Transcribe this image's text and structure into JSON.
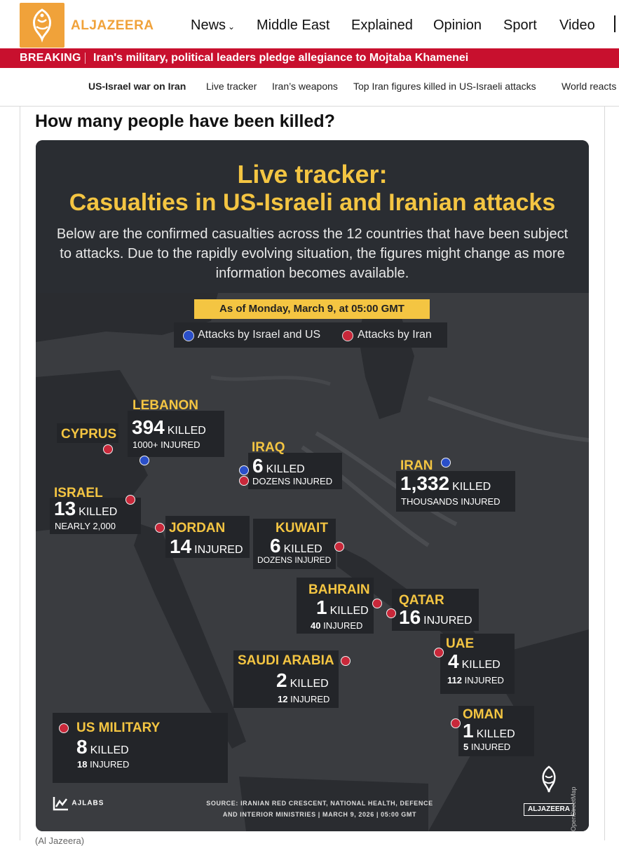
{
  "brand": {
    "name": "ALJAZEERA",
    "color": "#f0a23a"
  },
  "nav": {
    "items": [
      "News",
      "Middle East",
      "Explained",
      "Opinion",
      "Sport",
      "Video"
    ]
  },
  "breaking": {
    "label": "BREAKING",
    "text": "Iran's military, political leaders pledge allegiance to Mojtaba Khamenei",
    "color": "#c8102e"
  },
  "subnav": {
    "items": [
      "US-Israel war on Iran",
      "Live tracker",
      "Iran’s weapons",
      "Top Iran figures killed in US-Israeli attacks",
      "World reacts"
    ]
  },
  "section_title": "How many people have been killed?",
  "infographic": {
    "title_line1": "Live tracker:",
    "title_line2": "Casualties in US-Israeli and Iranian attacks",
    "subtitle": "Below are the confirmed casualties across the 12 countries that have been subject to attacks. Due to the rapidly evolving situation, the figures might change as more information becomes available.",
    "date": "As of Monday, March 9, at 05:00 GMT",
    "legend": {
      "blue": "Attacks by Israel and US",
      "red": "Attacks by Iran"
    },
    "accent_color": "#f4c542",
    "countries": {
      "lebanon": {
        "name": "LEBANON",
        "killed": "394",
        "killed_label": "KILLED",
        "injured": "1000+ INJURED"
      },
      "cyprus": {
        "name": "CYPRUS"
      },
      "iraq": {
        "name": "IRAQ",
        "killed": "6",
        "killed_label": "KILLED",
        "injured": "DOZENS INJURED"
      },
      "iran": {
        "name": "IRAN",
        "killed": "1,332",
        "killed_label": "KILLED",
        "injured": "THOUSANDS INJURED"
      },
      "israel": {
        "name": "ISRAEL",
        "killed": "13",
        "killed_label": "KILLED",
        "injured": "NEARLY 2,000"
      },
      "jordan": {
        "name": "JORDAN",
        "injured_num": "14",
        "injured_label": "INJURED"
      },
      "kuwait": {
        "name": "KUWAIT",
        "killed": "6",
        "killed_label": "KILLED",
        "injured": "DOZENS INJURED"
      },
      "bahrain": {
        "name": "BAHRAIN",
        "killed": "1",
        "killed_label": "KILLED",
        "injured_num": "40",
        "injured_label": "INJURED"
      },
      "qatar": {
        "name": "QATAR",
        "injured_num": "16",
        "injured_label": "INJURED"
      },
      "uae": {
        "name": "UAE",
        "killed": "4",
        "killed_label": "KILLED",
        "injured_num": "112",
        "injured_label": "INJURED"
      },
      "saudi": {
        "name": "SAUDI ARABIA",
        "killed": "2",
        "killed_label": "KILLED",
        "injured_num": "12",
        "injured_label": "INJURED"
      },
      "us_military": {
        "name": "US MILITARY",
        "killed": "8",
        "killed_label": "KILLED",
        "injured_num": "18",
        "injured_label": "INJURED"
      },
      "oman": {
        "name": "OMAN",
        "killed": "1",
        "killed_label": "KILLED",
        "injured_num": "5",
        "injured_label": "INJURED"
      }
    },
    "source_line1": "SOURCE:  IRANIAN RED CRESCENT, NATIONAL HEALTH, DEFENCE",
    "source_line2": "AND INTERIOR MINISTRIES   |   MARCH 9, 2026   |   05:00 GMT",
    "ajlabs": "AJLABS",
    "aj_logo_text": "ALJAZEERA",
    "map_credit": "© Mapbox, © OpenStreetMap"
  },
  "caption": "(Al Jazeera)"
}
